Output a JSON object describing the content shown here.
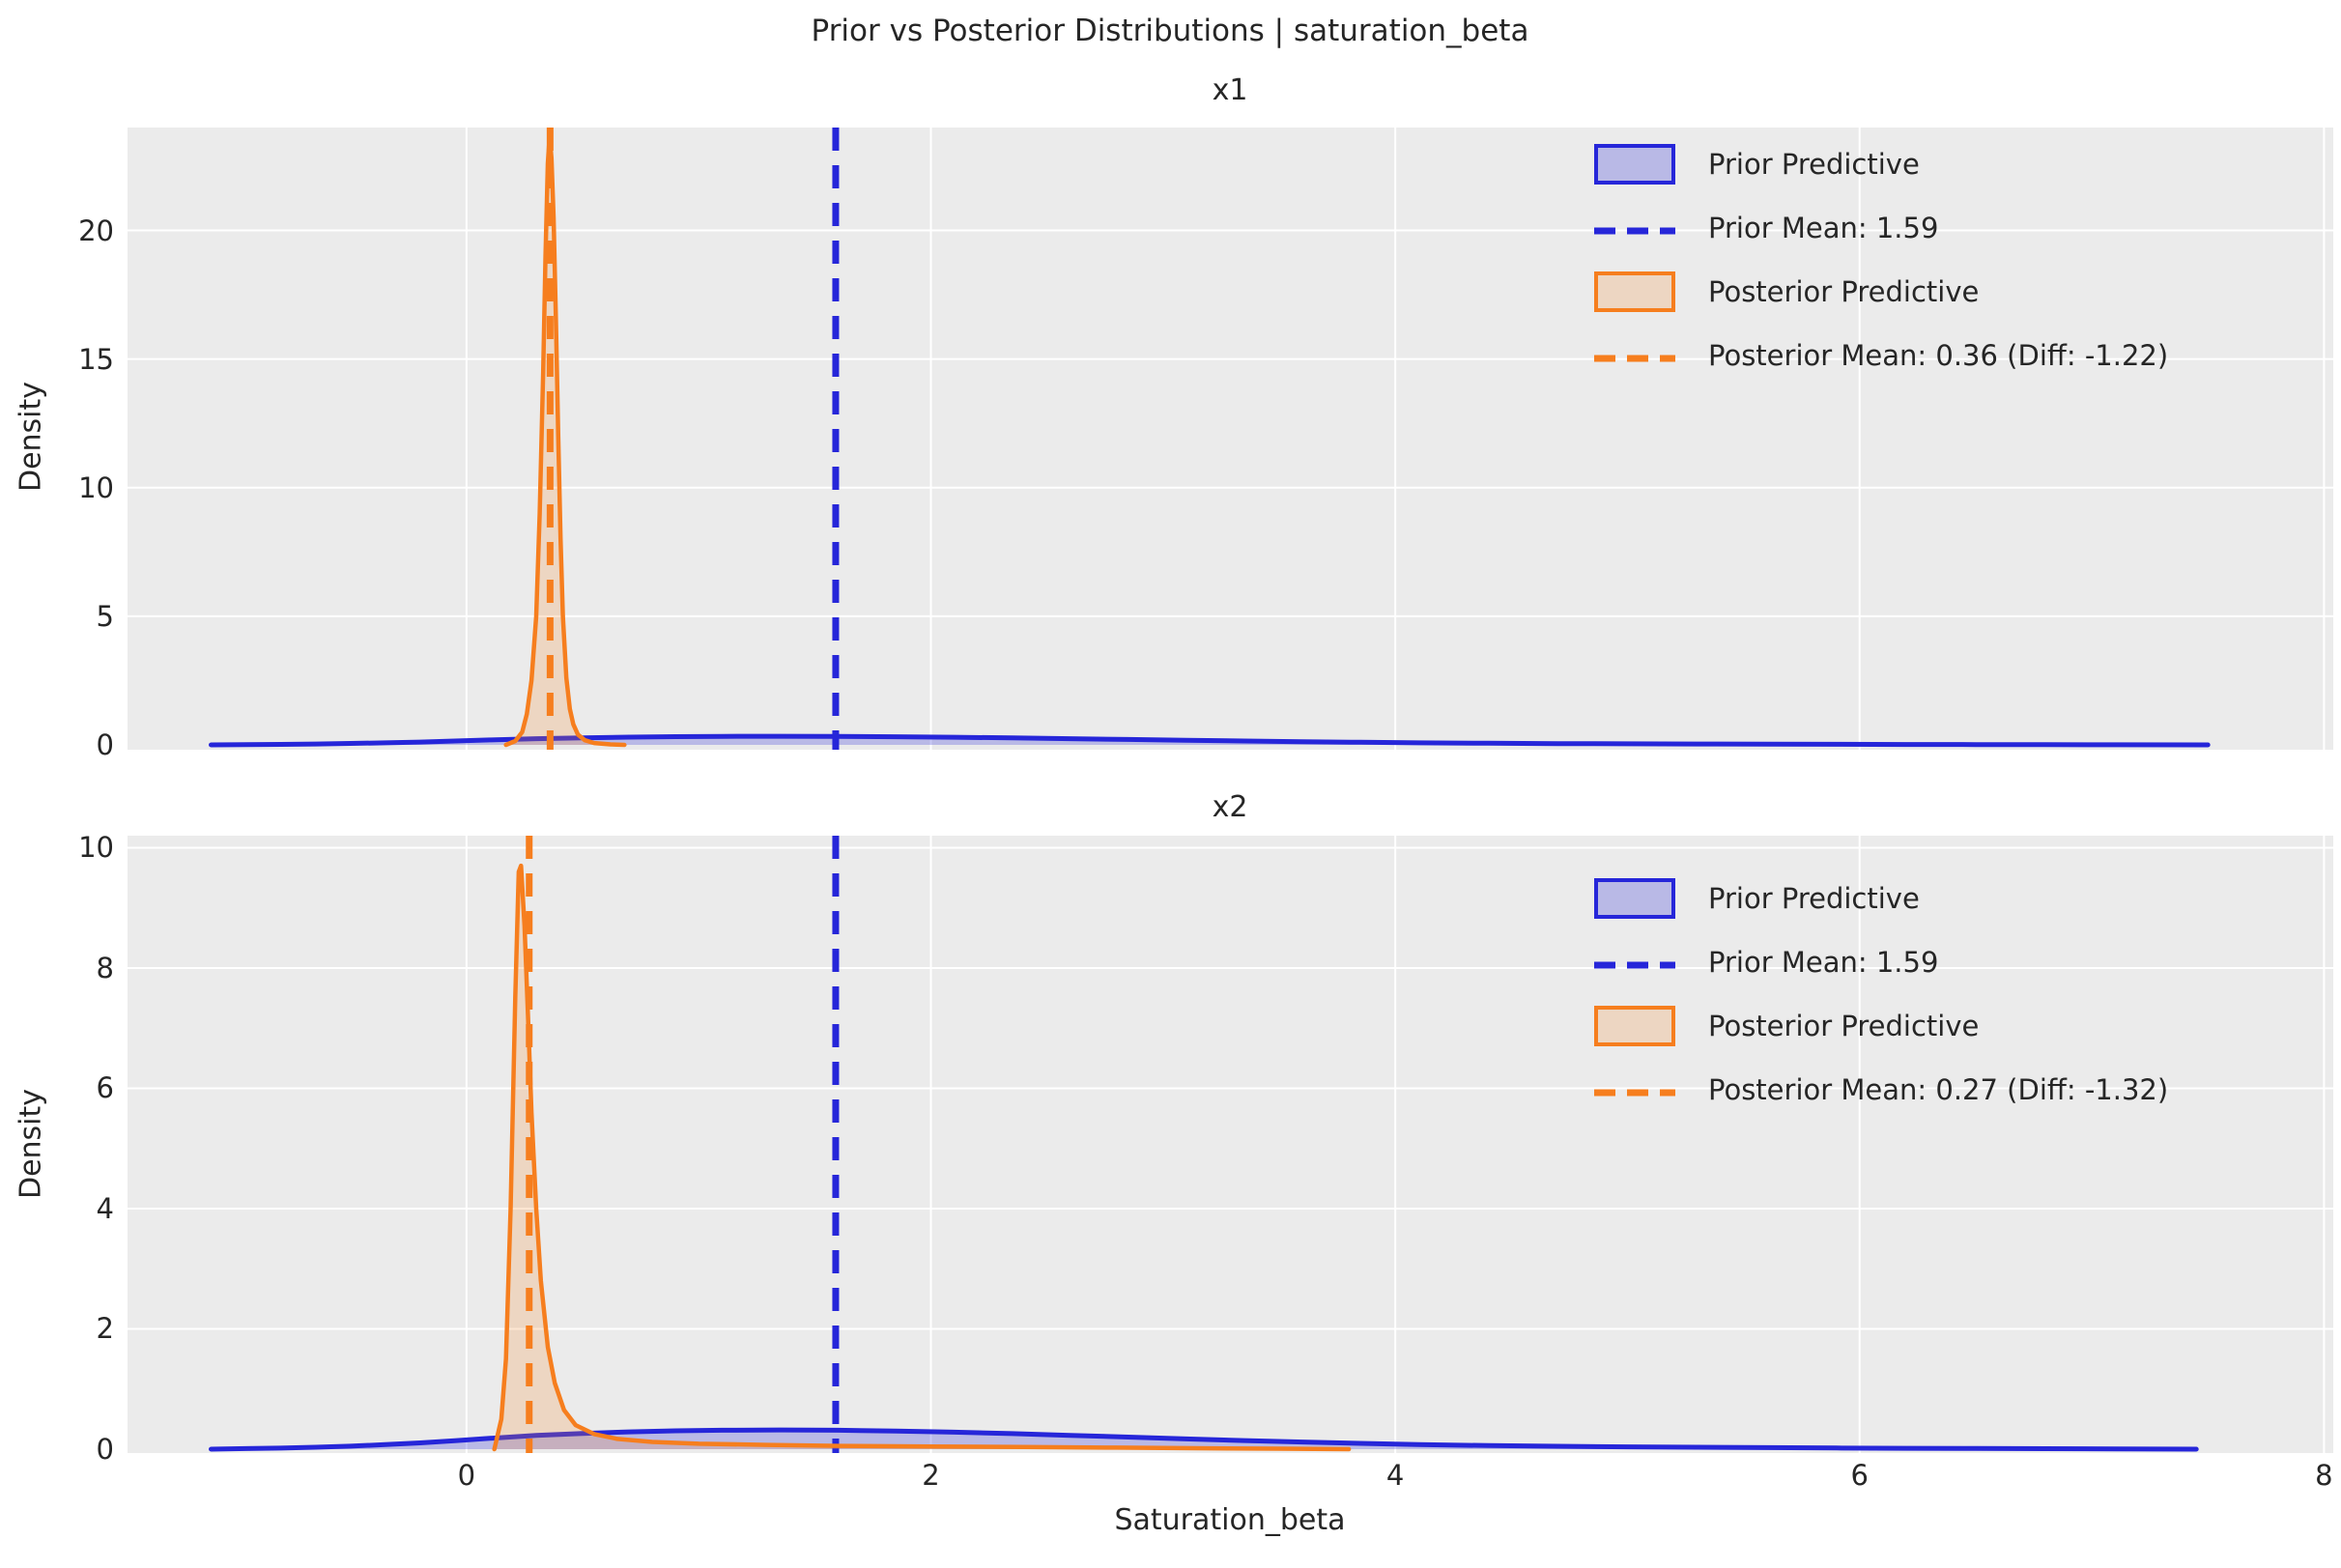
{
  "figure": {
    "title": "Prior vs Posterior Distributions | saturation_beta",
    "xlabel": "Saturation_beta",
    "ylabel": "Density"
  },
  "colors": {
    "prior_line": "#2626d9",
    "prior_fill": "rgba(70,70,220,0.30)",
    "posterior_line": "#f67e1e",
    "posterior_fill": "rgba(246,140,50,0.22)",
    "plot_bg": "#ebebeb",
    "grid": "#ffffff",
    "text": "#262626"
  },
  "x_axis": {
    "min": -1.46,
    "max": 8.04,
    "tick_values": [
      0,
      2,
      4,
      6,
      8
    ],
    "tick_labels": [
      "0",
      "2",
      "4",
      "6",
      "8"
    ]
  },
  "chart_data": [
    {
      "type": "area",
      "subplot_title": "x1",
      "ylabel": "Density",
      "xlabel": "Saturation_beta",
      "ylim": [
        0,
        24
      ],
      "ytick_values": [
        0,
        5,
        10,
        15,
        20
      ],
      "ytick_labels": [
        "0",
        "5",
        "10",
        "15",
        "20"
      ],
      "grid": true,
      "legend_position": "upper right",
      "series": [
        {
          "name": "Prior Predictive",
          "role": "prior",
          "points": [
            [
              -1.1,
              0
            ],
            [
              -0.95,
              0.01
            ],
            [
              -0.8,
              0.02
            ],
            [
              -0.65,
              0.035
            ],
            [
              -0.5,
              0.055
            ],
            [
              -0.35,
              0.08
            ],
            [
              -0.2,
              0.11
            ],
            [
              -0.05,
              0.15
            ],
            [
              0.1,
              0.19
            ],
            [
              0.3,
              0.24
            ],
            [
              0.5,
              0.275
            ],
            [
              0.7,
              0.3
            ],
            [
              0.9,
              0.32
            ],
            [
              1.1,
              0.33
            ],
            [
              1.35,
              0.335
            ],
            [
              1.6,
              0.33
            ],
            [
              1.85,
              0.315
            ],
            [
              2.1,
              0.295
            ],
            [
              2.35,
              0.27
            ],
            [
              2.6,
              0.24
            ],
            [
              2.85,
              0.21
            ],
            [
              3.1,
              0.18
            ],
            [
              3.35,
              0.15
            ],
            [
              3.6,
              0.125
            ],
            [
              3.85,
              0.1
            ],
            [
              4.1,
              0.08
            ],
            [
              4.4,
              0.063
            ],
            [
              4.7,
              0.05
            ],
            [
              5.0,
              0.041
            ],
            [
              5.3,
              0.034
            ],
            [
              5.6,
              0.027
            ],
            [
              5.9,
              0.021
            ],
            [
              6.2,
              0.016
            ],
            [
              6.5,
              0.012
            ],
            [
              6.8,
              0.008
            ],
            [
              7.1,
              0.005
            ],
            [
              7.5,
              0
            ]
          ]
        },
        {
          "name": "Posterior Predictive",
          "role": "posterior",
          "points": [
            [
              0.17,
              0
            ],
            [
              0.21,
              0.15
            ],
            [
              0.24,
              0.5
            ],
            [
              0.26,
              1.2
            ],
            [
              0.28,
              2.5
            ],
            [
              0.3,
              5
            ],
            [
              0.315,
              9
            ],
            [
              0.33,
              14.5
            ],
            [
              0.34,
              19
            ],
            [
              0.35,
              22.6
            ],
            [
              0.358,
              23.7
            ],
            [
              0.366,
              22.8
            ],
            [
              0.375,
              20.5
            ],
            [
              0.385,
              16.5
            ],
            [
              0.395,
              12
            ],
            [
              0.405,
              8
            ],
            [
              0.415,
              5
            ],
            [
              0.43,
              2.6
            ],
            [
              0.445,
              1.4
            ],
            [
              0.46,
              0.8
            ],
            [
              0.48,
              0.4
            ],
            [
              0.51,
              0.18
            ],
            [
              0.55,
              0.07
            ],
            [
              0.62,
              0.02
            ],
            [
              0.68,
              0
            ]
          ]
        }
      ],
      "vlines": [
        {
          "role": "prior",
          "x": 1.59,
          "label": "Prior Mean: 1.59"
        },
        {
          "role": "posterior",
          "x": 0.36,
          "label": "Posterior Mean: 0.36 (Diff: -1.22)"
        }
      ],
      "legend": [
        {
          "type": "patch",
          "role": "prior",
          "label": "Prior Predictive"
        },
        {
          "type": "dash",
          "role": "prior",
          "label": "Prior Mean: 1.59"
        },
        {
          "type": "patch",
          "role": "posterior",
          "label": "Posterior Predictive"
        },
        {
          "type": "dash",
          "role": "posterior",
          "label": "Posterior Mean: 0.36 (Diff: -1.22)"
        }
      ]
    },
    {
      "type": "area",
      "subplot_title": "x2",
      "ylabel": "Density",
      "xlabel": "Saturation_beta",
      "ylim": [
        0,
        10.2
      ],
      "ytick_values": [
        0,
        2,
        4,
        6,
        8,
        10
      ],
      "ytick_labels": [
        "0",
        "2",
        "4",
        "6",
        "8",
        "10"
      ],
      "grid": true,
      "legend_position": "upper right",
      "series": [
        {
          "name": "Prior Predictive",
          "role": "prior",
          "points": [
            [
              -1.1,
              0
            ],
            [
              -0.95,
              0.009
            ],
            [
              -0.8,
              0.018
            ],
            [
              -0.65,
              0.032
            ],
            [
              -0.5,
              0.05
            ],
            [
              -0.35,
              0.075
            ],
            [
              -0.2,
              0.105
            ],
            [
              -0.05,
              0.14
            ],
            [
              0.1,
              0.18
            ],
            [
              0.3,
              0.228
            ],
            [
              0.5,
              0.262
            ],
            [
              0.7,
              0.288
            ],
            [
              0.9,
              0.305
            ],
            [
              1.1,
              0.315
            ],
            [
              1.35,
              0.32
            ],
            [
              1.6,
              0.315
            ],
            [
              1.85,
              0.3
            ],
            [
              2.1,
              0.282
            ],
            [
              2.35,
              0.258
            ],
            [
              2.6,
              0.23
            ],
            [
              2.85,
              0.2
            ],
            [
              3.1,
              0.17
            ],
            [
              3.35,
              0.143
            ],
            [
              3.6,
              0.119
            ],
            [
              3.85,
              0.096
            ],
            [
              4.1,
              0.077
            ],
            [
              4.4,
              0.06
            ],
            [
              4.7,
              0.048
            ],
            [
              5.0,
              0.039
            ],
            [
              5.3,
              0.032
            ],
            [
              5.6,
              0.026
            ],
            [
              5.9,
              0.02
            ],
            [
              6.2,
              0.015
            ],
            [
              6.5,
              0.011
            ],
            [
              6.8,
              0.008
            ],
            [
              7.1,
              0.004
            ],
            [
              7.45,
              0
            ]
          ]
        },
        {
          "name": "Posterior Predictive",
          "role": "posterior",
          "points": [
            [
              0.12,
              0
            ],
            [
              0.15,
              0.5
            ],
            [
              0.17,
              1.5
            ],
            [
              0.19,
              4
            ],
            [
              0.21,
              7.5
            ],
            [
              0.225,
              9.6
            ],
            [
              0.235,
              9.7
            ],
            [
              0.25,
              8.7
            ],
            [
              0.265,
              7.2
            ],
            [
              0.28,
              5.6
            ],
            [
              0.3,
              4.0
            ],
            [
              0.32,
              2.8
            ],
            [
              0.35,
              1.7
            ],
            [
              0.38,
              1.1
            ],
            [
              0.42,
              0.65
            ],
            [
              0.47,
              0.4
            ],
            [
              0.55,
              0.25
            ],
            [
              0.65,
              0.17
            ],
            [
              0.8,
              0.12
            ],
            [
              1.0,
              0.09
            ],
            [
              1.3,
              0.07
            ],
            [
              1.6,
              0.055
            ],
            [
              2.0,
              0.045
            ],
            [
              2.4,
              0.035
            ],
            [
              2.8,
              0.025
            ],
            [
              3.2,
              0.015
            ],
            [
              3.5,
              0.008
            ],
            [
              3.8,
              0
            ]
          ]
        }
      ],
      "vlines": [
        {
          "role": "prior",
          "x": 1.59,
          "label": "Prior Mean: 1.59"
        },
        {
          "role": "posterior",
          "x": 0.27,
          "label": "Posterior Mean: 0.27 (Diff: -1.32)"
        }
      ],
      "legend": [
        {
          "type": "patch",
          "role": "prior",
          "label": "Prior Predictive"
        },
        {
          "type": "dash",
          "role": "prior",
          "label": "Prior Mean: 1.59"
        },
        {
          "type": "patch",
          "role": "posterior",
          "label": "Posterior Predictive"
        },
        {
          "type": "dash",
          "role": "posterior",
          "label": "Posterior Mean: 0.27 (Diff: -1.32)"
        }
      ]
    }
  ]
}
